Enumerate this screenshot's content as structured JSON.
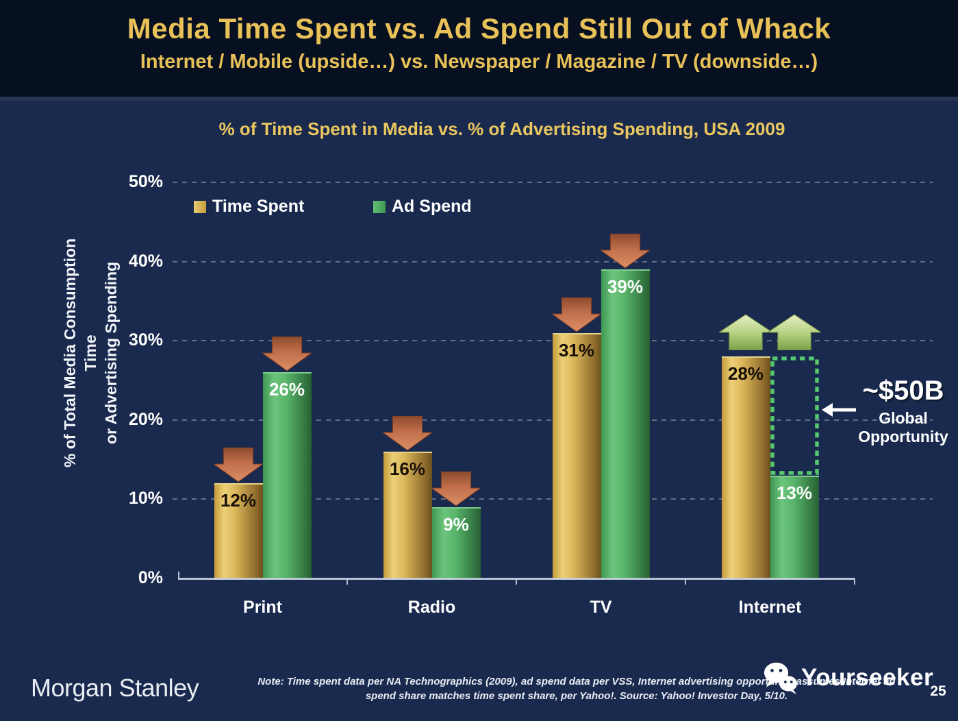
{
  "slide": {
    "title": "Media Time Spent vs. Ad Spend Still Out of Whack",
    "subtitle": "Internet / Mobile (upside…) vs. Newspaper / Magazine / TV (downside…)",
    "brand": "Morgan Stanley",
    "note_line1": "Note: Time spent data per NA Technographics (2009), ad spend data per VSS, Internet advertising opportunity assumes Internet ad",
    "note_line2": "spend share matches time spent share, per Yahoo!. Source: Yahoo! Investor Day, 5/10.",
    "watermark": "Yourseeker",
    "page_number": "25"
  },
  "colors": {
    "header_background": "#071020",
    "body_background": "#1A2A4E",
    "title_gold": "#E8C158",
    "bar_gold": "#DCB85A",
    "bar_green": "#58B56A",
    "down_arrow_red": "#C06F4A",
    "up_arrow_green": "#B8D483",
    "opportunity_dash_green": "#55C86E",
    "text_white": "#FFFFFF"
  },
  "chart_data": {
    "type": "bar",
    "title": "% of Time Spent in Media vs. % of Advertising Spending, USA 2009",
    "ylabel": "% of Total Media Consumption Time or Advertising Spending",
    "ylabel_lines": [
      "% of Total Media Consumption Time",
      "or Advertising Spending"
    ],
    "categories": [
      "Print",
      "Radio",
      "TV",
      "Internet"
    ],
    "series": [
      {
        "name": "Time Spent",
        "values": [
          12,
          16,
          31,
          28
        ]
      },
      {
        "name": "Ad Spend",
        "values": [
          26,
          9,
          39,
          13
        ]
      }
    ],
    "value_label_suffix": "%",
    "ylim": [
      0,
      50
    ],
    "yticks": [
      "0%",
      "10%",
      "20%",
      "30%",
      "40%",
      "50%"
    ],
    "grid": "dashed-horizontal",
    "legend_position": "top-left-inside",
    "trend_arrows": [
      {
        "category": "Print",
        "series": "Time Spent",
        "direction": "down"
      },
      {
        "category": "Print",
        "series": "Ad Spend",
        "direction": "down"
      },
      {
        "category": "Radio",
        "series": "Time Spent",
        "direction": "down"
      },
      {
        "category": "Radio",
        "series": "Ad Spend",
        "direction": "down"
      },
      {
        "category": "TV",
        "series": "Time Spent",
        "direction": "down"
      },
      {
        "category": "TV",
        "series": "Ad Spend",
        "direction": "down"
      },
      {
        "category": "Internet",
        "series": "Time Spent",
        "direction": "up"
      },
      {
        "category": "Internet",
        "series": "Ad Spend",
        "direction": "up"
      }
    ],
    "opportunity_box": {
      "category": "Internet",
      "series": "Ad Spend",
      "from_value": 13,
      "to_value": 28
    },
    "annotation": {
      "value": "~$50B",
      "label_line1": "Global",
      "label_line2": "Opportunity",
      "arrow": "left"
    }
  }
}
